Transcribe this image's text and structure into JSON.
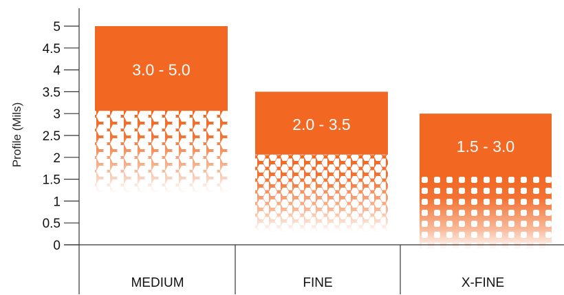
{
  "chart_data": {
    "type": "bar",
    "ylabel": "Profile (Mils)",
    "ylim": [
      0,
      5
    ],
    "yticks": [
      "0",
      "0.5",
      "1",
      "1.5",
      "2",
      "2.5",
      "3",
      "3.5",
      "4",
      "4.5",
      "5"
    ],
    "categories": [
      "MEDIUM",
      "FINE",
      "X-FINE"
    ],
    "ranges": [
      {
        "category": "MEDIUM",
        "low": 3.0,
        "high": 5.0,
        "label": "3.0 - 5.0",
        "pattern": "hex-large"
      },
      {
        "category": "FINE",
        "low": 2.0,
        "high": 3.5,
        "label": "2.0 - 3.5",
        "pattern": "hex-medium"
      },
      {
        "category": "X-FINE",
        "low": 1.5,
        "high": 3.0,
        "label": "1.5 - 3.0",
        "pattern": "dots-small"
      }
    ],
    "grid": false,
    "legend": "none",
    "colors": {
      "bar": "#F26722",
      "axis": "#333333",
      "text": "#111111"
    }
  }
}
